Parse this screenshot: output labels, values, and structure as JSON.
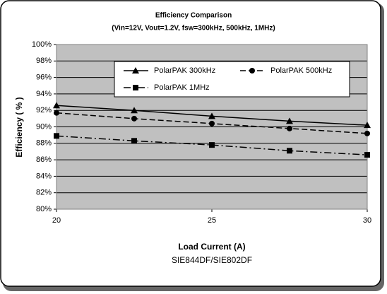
{
  "chart_data": {
    "type": "line",
    "title": "Efficiency Comparison",
    "subtitle": "(Vin=12V, Vout=1.2V, fsw=300kHz, 500kHz, 1MHz)",
    "x_label": "Load Current (A)",
    "y_label": "Efficiency ( % )",
    "caption": "SIE844DF/SIE802DF",
    "x": [
      20,
      22.5,
      25,
      27.5,
      30
    ],
    "xlim": [
      20,
      30
    ],
    "xticks": [
      20,
      25,
      30
    ],
    "ylim": [
      80,
      100
    ],
    "yticks": [
      {
        "value": 80,
        "label": "80%"
      },
      {
        "value": 82,
        "label": "82%"
      },
      {
        "value": 84,
        "label": "84%"
      },
      {
        "value": 86,
        "label": "86%"
      },
      {
        "value": 88,
        "label": "88%"
      },
      {
        "value": 90,
        "label": "90%"
      },
      {
        "value": 92,
        "label": "92%"
      },
      {
        "value": 94,
        "label": "94%"
      },
      {
        "value": 96,
        "label": "96%"
      },
      {
        "value": 98,
        "label": "98%"
      },
      {
        "value": 100,
        "label": "100%"
      }
    ],
    "grid": true,
    "series": [
      {
        "name": "PolarPAK 300kHz",
        "color": "#000000",
        "dash": "solid",
        "marker": "triangle",
        "values": [
          92.6,
          92.0,
          91.3,
          90.7,
          90.2
        ]
      },
      {
        "name": "PolarPAK 500kHz",
        "color": "#000000",
        "dash": "dashed",
        "marker": "circle",
        "values": [
          91.7,
          91.0,
          90.4,
          89.8,
          89.2
        ]
      },
      {
        "name": "PolarPAK 1MHz",
        "color": "#000000",
        "dash": "dashdot",
        "marker": "square",
        "values": [
          88.9,
          88.3,
          87.8,
          87.1,
          86.6
        ]
      }
    ]
  }
}
